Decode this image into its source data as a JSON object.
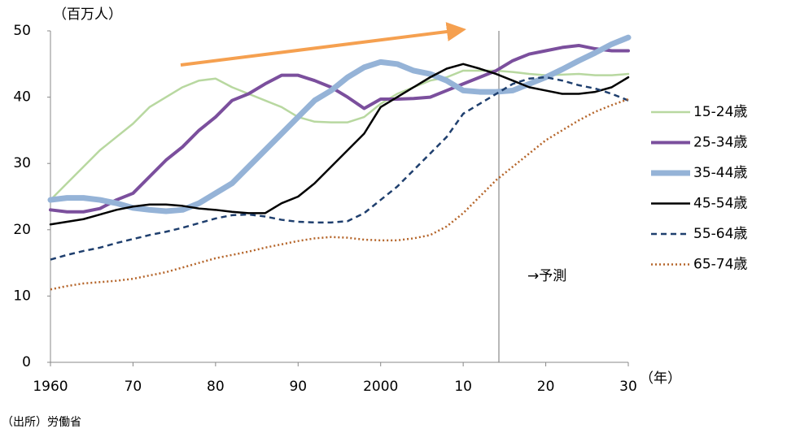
{
  "chart_data": {
    "type": "line",
    "y_unit": "（百万人）",
    "x_unit": "（年）",
    "source": "（出所）労働省",
    "annotation": "→予測",
    "x": [
      1960,
      1962,
      1964,
      1966,
      1968,
      1970,
      1972,
      1974,
      1976,
      1978,
      1980,
      1982,
      1984,
      1986,
      1988,
      1990,
      1992,
      1994,
      1996,
      1998,
      2000,
      2002,
      2004,
      2006,
      2008,
      2010,
      2012,
      2014,
      2016,
      2018,
      2020,
      2022,
      2024,
      2026,
      2028,
      2030
    ],
    "xlim": [
      1960,
      2030
    ],
    "xticks": [
      1960,
      {
        "value": 1970,
        "label": "70"
      },
      {
        "value": 1980,
        "label": "80"
      },
      {
        "value": 1990,
        "label": "90"
      },
      2000,
      {
        "value": 2010,
        "label": "10"
      },
      {
        "value": 2020,
        "label": "20"
      },
      {
        "value": 2030,
        "label": "30"
      }
    ],
    "ylim": [
      0,
      50
    ],
    "yticks": [
      0,
      10,
      20,
      30,
      40,
      50
    ],
    "grid": false,
    "series": [
      {
        "name": "15-24歳",
        "color": "#b8d8a0",
        "width": 2.5,
        "dash": "",
        "values": [
          24.5,
          27,
          29.5,
          32,
          34,
          36,
          38.5,
          40,
          41.5,
          42.5,
          42.8,
          41.5,
          40.5,
          39.5,
          38.5,
          37,
          36.3,
          36.2,
          36.2,
          37,
          39,
          40.5,
          41.5,
          42.5,
          43,
          44,
          44,
          44,
          43.8,
          43.5,
          43.3,
          43.4,
          43.5,
          43.3,
          43.3,
          43.5
        ]
      },
      {
        "name": "25-34歳",
        "color": "#7b4f9d",
        "width": 4,
        "dash": "",
        "values": [
          23,
          22.7,
          22.7,
          23.2,
          24.5,
          25.5,
          28,
          30.5,
          32.5,
          35,
          37,
          39.5,
          40.5,
          42,
          43.3,
          43.3,
          42.5,
          41.5,
          40,
          38.3,
          39.7,
          39.7,
          39.8,
          40,
          41,
          42,
          43,
          44,
          45.5,
          46.5,
          47,
          47.5,
          47.8,
          47.3,
          47,
          47
        ]
      },
      {
        "name": "35-44歳",
        "color": "#95b3d7",
        "width": 7,
        "dash": "",
        "values": [
          24.5,
          24.8,
          24.8,
          24.5,
          24,
          23.3,
          23,
          22.8,
          23,
          24,
          25.5,
          27,
          29.5,
          32,
          34.5,
          37,
          39.5,
          41,
          43,
          44.5,
          45.3,
          45,
          44,
          43.5,
          42.5,
          41,
          40.8,
          40.8,
          41,
          42,
          43,
          44.2,
          45.5,
          46.7,
          48,
          49
        ]
      },
      {
        "name": "45-54歳",
        "color": "#000000",
        "width": 2.5,
        "dash": "",
        "values": [
          20.8,
          21.2,
          21.6,
          22.3,
          23,
          23.5,
          23.8,
          23.8,
          23.6,
          23.2,
          23,
          22.7,
          22.5,
          22.5,
          24,
          25,
          27,
          29.5,
          32,
          34.5,
          38.5,
          40,
          41.5,
          43,
          44.3,
          45,
          44.3,
          43.5,
          42.5,
          41.5,
          41,
          40.5,
          40.5,
          40.8,
          41.5,
          43
        ]
      },
      {
        "name": "55-64歳",
        "color": "#1f3f6e",
        "width": 2.5,
        "dash": "7,5",
        "values": [
          15.5,
          16.2,
          16.8,
          17.3,
          18,
          18.6,
          19.2,
          19.7,
          20.3,
          21,
          21.7,
          22.2,
          22.3,
          22,
          21.5,
          21.2,
          21.1,
          21.1,
          21.3,
          22.5,
          24.5,
          26.5,
          29,
          31.5,
          34,
          37.5,
          39,
          40.5,
          42,
          42.8,
          43,
          42.5,
          41.8,
          41.3,
          40.5,
          39.5
        ]
      },
      {
        "name": "65-74歳",
        "color": "#b5652a",
        "width": 2.5,
        "dash": "2,3",
        "values": [
          11,
          11.5,
          11.9,
          12.1,
          12.3,
          12.6,
          13.1,
          13.6,
          14.3,
          15,
          15.7,
          16.2,
          16.7,
          17.3,
          17.8,
          18.3,
          18.7,
          18.9,
          18.8,
          18.5,
          18.4,
          18.4,
          18.7,
          19.2,
          20.5,
          22.5,
          25,
          27.5,
          29.5,
          31.5,
          33.5,
          35,
          36.5,
          37.8,
          38.8,
          39.7
        ]
      }
    ]
  }
}
